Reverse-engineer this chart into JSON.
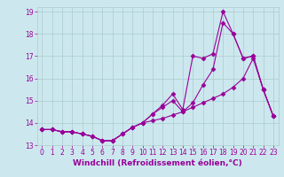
{
  "xlabel": "Windchill (Refroidissement éolien,°C)",
  "background_color": "#cce8ee",
  "line_color": "#990099",
  "grid_color": "#aacccc",
  "xlim": [
    -0.5,
    23.5
  ],
  "ylim": [
    13.0,
    19.2
  ],
  "xticks": [
    0,
    1,
    2,
    3,
    4,
    5,
    6,
    7,
    8,
    9,
    10,
    11,
    12,
    13,
    14,
    15,
    16,
    17,
    18,
    19,
    20,
    21,
    22,
    23
  ],
  "yticks": [
    13,
    14,
    15,
    16,
    17,
    18,
    19
  ],
  "series": [
    {
      "x": [
        0,
        1,
        2,
        3,
        4,
        5,
        6,
        7,
        8,
        9,
        10,
        11,
        12,
        13,
        14,
        15,
        16,
        17,
        18,
        19,
        20,
        21,
        22,
        23
      ],
      "y": [
        13.7,
        13.7,
        13.6,
        13.6,
        13.5,
        13.4,
        13.2,
        13.2,
        13.5,
        13.8,
        14.0,
        14.4,
        14.8,
        15.3,
        14.6,
        17.0,
        16.9,
        17.1,
        19.0,
        18.0,
        16.9,
        17.0,
        15.5,
        14.3
      ]
    },
    {
      "x": [
        0,
        1,
        2,
        3,
        4,
        5,
        6,
        7,
        8,
        9,
        10,
        11,
        12,
        13,
        14,
        15,
        16,
        17,
        18,
        19,
        20,
        21,
        22,
        23
      ],
      "y": [
        13.7,
        13.7,
        13.6,
        13.6,
        13.5,
        13.4,
        13.2,
        13.2,
        13.5,
        13.8,
        14.0,
        14.4,
        14.7,
        15.0,
        14.5,
        14.9,
        15.7,
        16.4,
        18.5,
        18.0,
        16.9,
        17.0,
        15.5,
        14.3
      ]
    },
    {
      "x": [
        0,
        1,
        2,
        3,
        4,
        5,
        6,
        7,
        8,
        9,
        10,
        11,
        12,
        13,
        14,
        15,
        16,
        17,
        18,
        19,
        20,
        21,
        22,
        23
      ],
      "y": [
        13.7,
        13.7,
        13.6,
        13.6,
        13.5,
        13.4,
        13.2,
        13.2,
        13.5,
        13.8,
        14.0,
        14.1,
        14.2,
        14.35,
        14.5,
        14.7,
        14.9,
        15.1,
        15.3,
        15.6,
        16.0,
        16.9,
        15.5,
        14.3
      ]
    }
  ],
  "marker": "D",
  "marker_size": 2.5,
  "line_width": 0.8,
  "tick_label_fontsize": 5.5,
  "xlabel_fontsize": 6.5
}
